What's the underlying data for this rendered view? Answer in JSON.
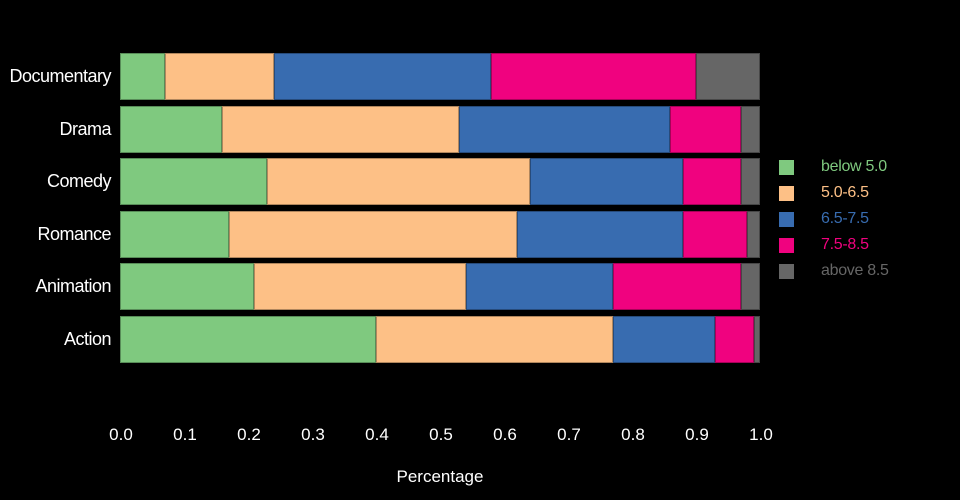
{
  "chart_data": {
    "type": "bar",
    "variant": "horizontal_stacked",
    "title": "",
    "xlabel": "Percentage",
    "ylabel": "",
    "xlim": [
      0.0,
      1.0
    ],
    "grid": false,
    "legend_position": "right",
    "background_color": "#000000",
    "text_color": "#FFFFFF",
    "x_ticks": [
      "0.0",
      "0.1",
      "0.2",
      "0.3",
      "0.4",
      "0.5",
      "0.6",
      "0.7",
      "0.8",
      "0.9",
      "1.0"
    ],
    "categories": [
      "Documentary",
      "Drama",
      "Comedy",
      "Romance",
      "Animation",
      "Action"
    ],
    "series": [
      {
        "name": "below 5.0",
        "color": "#7FC97F",
        "values": [
          0.07,
          0.16,
          0.23,
          0.17,
          0.21,
          0.4
        ]
      },
      {
        "name": "5.0-6.5",
        "color": "#FDC086",
        "values": [
          0.17,
          0.37,
          0.41,
          0.45,
          0.33,
          0.37
        ]
      },
      {
        "name": "6.5-7.5",
        "color": "#386CB0",
        "values": [
          0.34,
          0.33,
          0.24,
          0.26,
          0.23,
          0.16
        ]
      },
      {
        "name": "7.5-8.5",
        "color": "#F0027F",
        "values": [
          0.32,
          0.11,
          0.09,
          0.1,
          0.2,
          0.06
        ]
      },
      {
        "name": "above 8.5",
        "color": "#666666",
        "values": [
          0.1,
          0.03,
          0.03,
          0.02,
          0.03,
          0.01
        ]
      }
    ]
  }
}
